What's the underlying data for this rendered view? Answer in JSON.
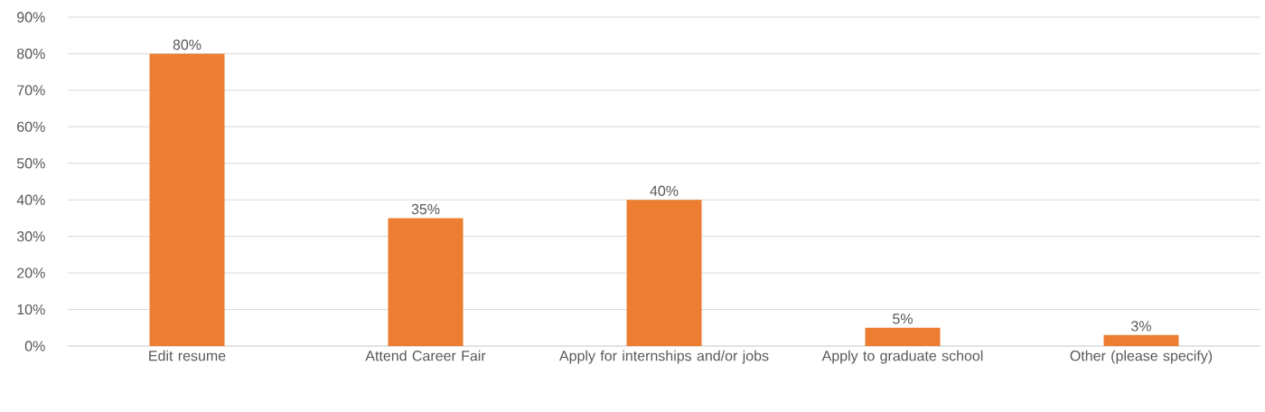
{
  "chart_data": {
    "type": "bar",
    "categories": [
      "Edit resume",
      "Attend Career Fair",
      "Apply for internships and/or jobs",
      "Apply to graduate school",
      "Other (please specify)"
    ],
    "values": [
      80,
      35,
      40,
      5,
      3
    ],
    "value_labels": [
      "80%",
      "35%",
      "40%",
      "5%",
      "3%"
    ],
    "color": "#ed7d31",
    "ylim": [
      0,
      90
    ],
    "yticks": [
      {
        "value": 0,
        "label": "0%"
      },
      {
        "value": 10,
        "label": "10%"
      },
      {
        "value": 20,
        "label": "20%"
      },
      {
        "value": 30,
        "label": "30%"
      },
      {
        "value": 40,
        "label": "40%"
      },
      {
        "value": 50,
        "label": "50%"
      },
      {
        "value": 60,
        "label": "60%"
      },
      {
        "value": 70,
        "label": "70%"
      },
      {
        "value": 80,
        "label": "80%"
      },
      {
        "value": 90,
        "label": "90%"
      }
    ],
    "grid": "y"
  }
}
